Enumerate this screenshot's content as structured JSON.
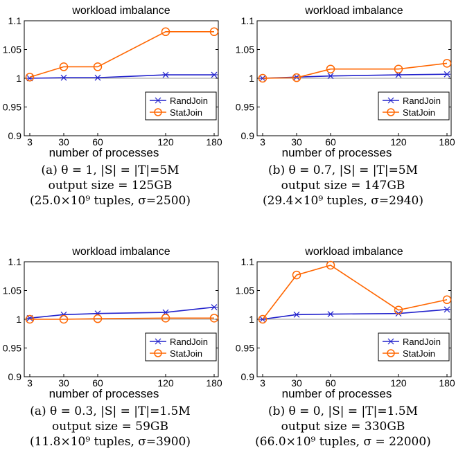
{
  "chart_data": [
    {
      "type": "line",
      "title": "workload imbalance",
      "xlabel": "number of processes",
      "ylabel": "",
      "x": [
        3,
        30,
        60,
        120,
        180
      ],
      "x_ticks": [
        "3",
        "30",
        "60",
        "120",
        "180"
      ],
      "ylim": [
        0.9,
        1.1
      ],
      "y_ticks": [
        "0.9",
        "0.95",
        "1",
        "1.05",
        "1.1"
      ],
      "series": [
        {
          "name": "RandJoin",
          "values": [
            1.0,
            1.001,
            1.001,
            1.006,
            1.006
          ],
          "color": "#2222cc",
          "marker": "x"
        },
        {
          "name": "StatJoin",
          "values": [
            1.002,
            1.02,
            1.02,
            1.081,
            1.081
          ],
          "color": "#ff6600",
          "marker": "circle"
        }
      ],
      "legend": "bottom-right",
      "caption": [
        "(a) θ = 1, |S| = |T|=5M",
        "output size = 125GB",
        "(25.0×10⁹ tuples, σ=2500)"
      ]
    },
    {
      "type": "line",
      "title": "workload imbalance",
      "xlabel": "number of processes",
      "ylabel": "",
      "x": [
        3,
        30,
        60,
        120,
        180
      ],
      "x_ticks": [
        "3",
        "30",
        "60",
        "120",
        "180"
      ],
      "ylim": [
        0.9,
        1.1
      ],
      "y_ticks": [
        "0.9",
        "0.95",
        "1",
        "1.05",
        "1.1"
      ],
      "series": [
        {
          "name": "RandJoin",
          "values": [
            1.0,
            1.002,
            1.004,
            1.006,
            1.007
          ],
          "color": "#2222cc",
          "marker": "x"
        },
        {
          "name": "StatJoin",
          "values": [
            1.0,
            1.001,
            1.016,
            1.016,
            1.026
          ],
          "color": "#ff6600",
          "marker": "circle"
        }
      ],
      "legend": "bottom-right",
      "caption": [
        "(b) θ = 0.7, |S| = |T|=5M",
        "output size = 147GB",
        "(29.4×10⁹ tuples, σ=2940)"
      ]
    },
    {
      "type": "line",
      "title": "workload imbalance",
      "xlabel": "number of processes",
      "ylabel": "",
      "x": [
        3,
        30,
        60,
        120,
        180
      ],
      "x_ticks": [
        "3",
        "30",
        "60",
        "120",
        "180"
      ],
      "ylim": [
        0.9,
        1.1
      ],
      "y_ticks": [
        "0.9",
        "0.95",
        "1",
        "1.05",
        "1.1"
      ],
      "series": [
        {
          "name": "RandJoin",
          "values": [
            1.002,
            1.008,
            1.01,
            1.012,
            1.021
          ],
          "color": "#2222cc",
          "marker": "x"
        },
        {
          "name": "StatJoin",
          "values": [
            1.0,
            1.0,
            1.001,
            1.002,
            1.002
          ],
          "color": "#ff6600",
          "marker": "circle"
        }
      ],
      "legend": "bottom-right",
      "caption": [
        "(a) θ = 0.3, |S| = |T|=1.5M",
        "output size = 59GB",
        "(11.8×10⁹ tuples, σ=3900)"
      ]
    },
    {
      "type": "line",
      "title": "workload imbalance",
      "xlabel": "number of processes",
      "ylabel": "",
      "x": [
        3,
        30,
        60,
        120,
        180
      ],
      "x_ticks": [
        "3",
        "30",
        "60",
        "120",
        "180"
      ],
      "ylim": [
        0.9,
        1.1
      ],
      "y_ticks": [
        "0.9",
        "0.95",
        "1",
        "1.05",
        "1.1"
      ],
      "series": [
        {
          "name": "RandJoin",
          "values": [
            1.0,
            1.008,
            1.009,
            1.01,
            1.017
          ],
          "color": "#2222cc",
          "marker": "x"
        },
        {
          "name": "StatJoin",
          "values": [
            1.0,
            1.077,
            1.094,
            1.016,
            1.034
          ],
          "color": "#ff6600",
          "marker": "circle"
        }
      ],
      "legend": "bottom-right",
      "caption": [
        "(b) θ = 0, |S| = |T|=1.5M",
        "output size = 330GB",
        "(66.0×10⁹ tuples, σ = 22000)"
      ]
    }
  ]
}
